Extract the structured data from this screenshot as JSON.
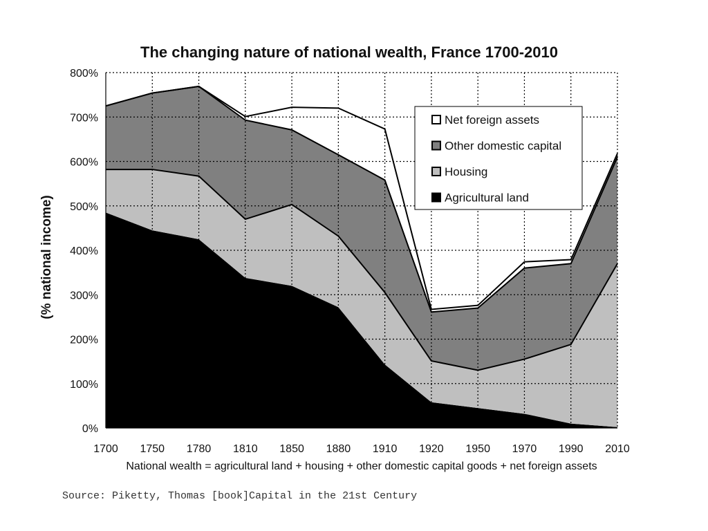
{
  "chart_data": {
    "type": "area",
    "stacked": true,
    "title": "The changing nature of national wealth, France 1700-2010",
    "ylabel": "(% national income)",
    "xlabel": "National wealth = agricultural land + housing + other domestic capital goods + net foreign assets",
    "x": [
      "1700",
      "1750",
      "1780",
      "1810",
      "1850",
      "1880",
      "1910",
      "1920",
      "1950",
      "1970",
      "1990",
      "2010"
    ],
    "ylim": [
      0,
      800
    ],
    "yticks": [
      "0%",
      "100%",
      "200%",
      "300%",
      "400%",
      "500%",
      "600%",
      "700%",
      "800%"
    ],
    "grid": true,
    "legend_position": "top-right",
    "series": [
      {
        "name": "Agricultural land",
        "color": "#000000",
        "values": [
          485,
          445,
          425,
          338,
          320,
          272,
          143,
          58,
          45,
          32,
          10,
          2
        ]
      },
      {
        "name": "Housing",
        "color": "#bfbfbf",
        "values": [
          97,
          137,
          142,
          132,
          183,
          160,
          162,
          93,
          85,
          123,
          178,
          368
        ]
      },
      {
        "name": "Other domestic capital",
        "color": "#808080",
        "values": [
          143,
          172,
          202,
          223,
          168,
          183,
          253,
          110,
          140,
          205,
          182,
          240
        ]
      },
      {
        "name": "Net foreign assets",
        "color": "#ffffff",
        "values": [
          0,
          0,
          0,
          8,
          51,
          105,
          115,
          6,
          6,
          14,
          9,
          8
        ]
      }
    ]
  },
  "source_text": "Source: Piketty, Thomas [book]Capital in the 21st Century"
}
